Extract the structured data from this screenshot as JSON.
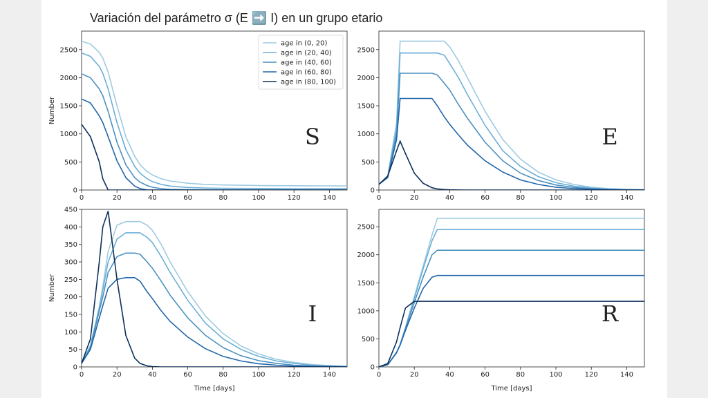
{
  "title": "Variación del parámetro σ (E ➡️ I) en un grupo etario",
  "chart_data": [
    {
      "type": "line",
      "label": "S",
      "ylabel": "Number",
      "legend": "upper right",
      "x": [
        0,
        5,
        10,
        12,
        15,
        20,
        25,
        30,
        33,
        37,
        40,
        45,
        50,
        60,
        70,
        80,
        90,
        100,
        110,
        120,
        130,
        140,
        150
      ],
      "xlim": [
        0,
        150
      ],
      "xticks": [
        0,
        20,
        40,
        60,
        80,
        100,
        120,
        140
      ],
      "ylim": [
        0,
        2830
      ],
      "yticks": [
        0,
        500,
        1000,
        1500,
        2000,
        2500
      ],
      "series": [
        {
          "name": "age in (0, 20)",
          "color": "#9ecae1",
          "values": [
            2650,
            2600,
            2450,
            2350,
            2100,
            1500,
            950,
            600,
            450,
            330,
            270,
            200,
            160,
            120,
            100,
            90,
            85,
            80,
            78,
            76,
            75,
            74,
            73
          ]
        },
        {
          "name": "age in (20, 40)",
          "color": "#6baed6",
          "values": [
            2440,
            2380,
            2200,
            2080,
            1800,
            1200,
            720,
            420,
            300,
            200,
            150,
            100,
            70,
            45,
            35,
            30,
            28,
            27,
            26,
            25,
            25,
            25,
            25
          ]
        },
        {
          "name": "age in (40, 60)",
          "color": "#4a90c0",
          "values": [
            2070,
            2000,
            1800,
            1680,
            1400,
            850,
            450,
            220,
            140,
            80,
            50,
            25,
            12,
            5,
            3,
            2,
            1,
            1,
            1,
            1,
            1,
            1,
            1
          ]
        },
        {
          "name": "age in (60, 80)",
          "color": "#2166a8",
          "values": [
            1620,
            1550,
            1320,
            1200,
            950,
            520,
            220,
            70,
            25,
            3,
            0,
            0,
            0,
            0,
            0,
            0,
            0,
            0,
            0,
            0,
            0,
            0,
            0
          ]
        },
        {
          "name": "age in (80, 100)",
          "color": "#0b2f5a",
          "values": [
            1170,
            950,
            500,
            200,
            0,
            0,
            0,
            0,
            0,
            0,
            0,
            0,
            0,
            0,
            0,
            0,
            0,
            0,
            0,
            0,
            0,
            0,
            0
          ]
        }
      ]
    },
    {
      "type": "line",
      "label": "E",
      "x": [
        0,
        5,
        10,
        12,
        15,
        20,
        25,
        30,
        33,
        37,
        40,
        45,
        50,
        60,
        70,
        80,
        90,
        100,
        110,
        120,
        130,
        140,
        150
      ],
      "xlim": [
        0,
        150
      ],
      "xticks": [
        0,
        20,
        40,
        60,
        80,
        100,
        120,
        140
      ],
      "ylim": [
        0,
        2830
      ],
      "yticks": [
        0,
        500,
        1000,
        1500,
        2000,
        2500
      ],
      "series": [
        {
          "color": "#9ecae1",
          "values": [
            100,
            250,
            1200,
            2650,
            2650,
            2650,
            2650,
            2650,
            2650,
            2650,
            2550,
            2300,
            2000,
            1400,
            900,
            550,
            320,
            180,
            100,
            50,
            25,
            12,
            5
          ]
        },
        {
          "color": "#6baed6",
          "values": [
            100,
            240,
            1100,
            2440,
            2440,
            2440,
            2440,
            2440,
            2440,
            2400,
            2250,
            2000,
            1700,
            1150,
            700,
            420,
            240,
            130,
            70,
            35,
            18,
            9,
            4
          ]
        },
        {
          "color": "#4a90c0",
          "values": [
            100,
            230,
            1000,
            2080,
            2080,
            2080,
            2080,
            2080,
            2050,
            1900,
            1780,
            1520,
            1280,
            850,
            520,
            300,
            170,
            90,
            45,
            22,
            10,
            5,
            2
          ]
        },
        {
          "color": "#2166a8",
          "values": [
            100,
            220,
            900,
            1630,
            1630,
            1630,
            1630,
            1630,
            1500,
            1300,
            1170,
            980,
            800,
            520,
            320,
            180,
            100,
            50,
            25,
            12,
            6,
            3,
            1
          ]
        },
        {
          "color": "#0b2f5a",
          "values": [
            100,
            250,
            700,
            870,
            650,
            300,
            120,
            40,
            20,
            8,
            4,
            1,
            0,
            0,
            0,
            0,
            0,
            0,
            0,
            0,
            0,
            0,
            0
          ]
        }
      ]
    },
    {
      "type": "line",
      "label": "I",
      "ylabel": "Number",
      "xlabel": "Time [days]",
      "x": [
        0,
        5,
        10,
        12,
        15,
        20,
        25,
        30,
        33,
        37,
        40,
        45,
        50,
        60,
        70,
        80,
        90,
        100,
        110,
        120,
        130,
        140,
        150
      ],
      "xlim": [
        0,
        150
      ],
      "xticks": [
        0,
        20,
        40,
        60,
        80,
        100,
        120,
        140
      ],
      "ylim": [
        0,
        450
      ],
      "yticks": [
        0,
        50,
        100,
        150,
        200,
        250,
        300,
        350,
        400,
        450
      ],
      "series": [
        {
          "color": "#9ecae1",
          "values": [
            10,
            60,
            170,
            230,
            330,
            405,
            415,
            415,
            415,
            405,
            390,
            350,
            300,
            215,
            145,
            95,
            60,
            37,
            22,
            13,
            7,
            4,
            2
          ]
        },
        {
          "color": "#6baed6",
          "values": [
            10,
            60,
            170,
            220,
            300,
            365,
            383,
            383,
            383,
            370,
            355,
            315,
            270,
            190,
            125,
            80,
            50,
            30,
            17,
            10,
            5,
            3,
            1
          ]
        },
        {
          "color": "#4a90c0",
          "values": [
            10,
            55,
            160,
            200,
            270,
            315,
            325,
            325,
            322,
            300,
            282,
            245,
            205,
            140,
            90,
            55,
            32,
            18,
            10,
            5,
            3,
            1,
            1
          ]
        },
        {
          "color": "#2166a8",
          "values": [
            10,
            50,
            140,
            175,
            225,
            250,
            255,
            255,
            245,
            215,
            195,
            160,
            130,
            85,
            52,
            30,
            17,
            9,
            5,
            2,
            1,
            1,
            0
          ]
        },
        {
          "color": "#0b2f5a",
          "values": [
            10,
            80,
            300,
            400,
            445,
            250,
            90,
            25,
            10,
            3,
            1,
            0,
            0,
            0,
            0,
            0,
            0,
            0,
            0,
            0,
            0,
            0,
            0
          ]
        }
      ]
    },
    {
      "type": "line",
      "label": "R",
      "xlabel": "Time [days]",
      "x": [
        0,
        5,
        10,
        12,
        15,
        20,
        25,
        30,
        33,
        37,
        40,
        45,
        50,
        60,
        70,
        80,
        90,
        100,
        110,
        120,
        130,
        140,
        150
      ],
      "xlim": [
        0,
        150
      ],
      "xticks": [
        0,
        20,
        40,
        60,
        80,
        100,
        120,
        140
      ],
      "ylim": [
        0,
        2810
      ],
      "yticks": [
        0,
        500,
        1000,
        1500,
        2000,
        2500
      ],
      "series": [
        {
          "color": "#9ecae1",
          "values": [
            0,
            40,
            250,
            400,
            700,
            1250,
            1800,
            2350,
            2650,
            2650,
            2650,
            2650,
            2650,
            2650,
            2650,
            2650,
            2650,
            2650,
            2650,
            2650,
            2650,
            2650,
            2650
          ]
        },
        {
          "color": "#6baed6",
          "values": [
            0,
            40,
            250,
            400,
            700,
            1220,
            1750,
            2250,
            2450,
            2450,
            2450,
            2450,
            2450,
            2450,
            2450,
            2450,
            2450,
            2450,
            2450,
            2450,
            2450,
            2450,
            2450
          ]
        },
        {
          "color": "#4a90c0",
          "values": [
            0,
            40,
            250,
            390,
            680,
            1150,
            1600,
            2000,
            2080,
            2080,
            2080,
            2080,
            2080,
            2080,
            2080,
            2080,
            2080,
            2080,
            2080,
            2080,
            2080,
            2080,
            2080
          ]
        },
        {
          "color": "#2166a8",
          "values": [
            0,
            40,
            260,
            390,
            650,
            1050,
            1400,
            1600,
            1630,
            1630,
            1630,
            1630,
            1630,
            1630,
            1630,
            1630,
            1630,
            1630,
            1630,
            1630,
            1630,
            1630,
            1630
          ]
        },
        {
          "color": "#0b2f5a",
          "values": [
            0,
            60,
            450,
            700,
            1050,
            1170,
            1170,
            1170,
            1170,
            1170,
            1170,
            1170,
            1170,
            1170,
            1170,
            1170,
            1170,
            1170,
            1170,
            1170,
            1170,
            1170,
            1170
          ]
        }
      ]
    }
  ]
}
